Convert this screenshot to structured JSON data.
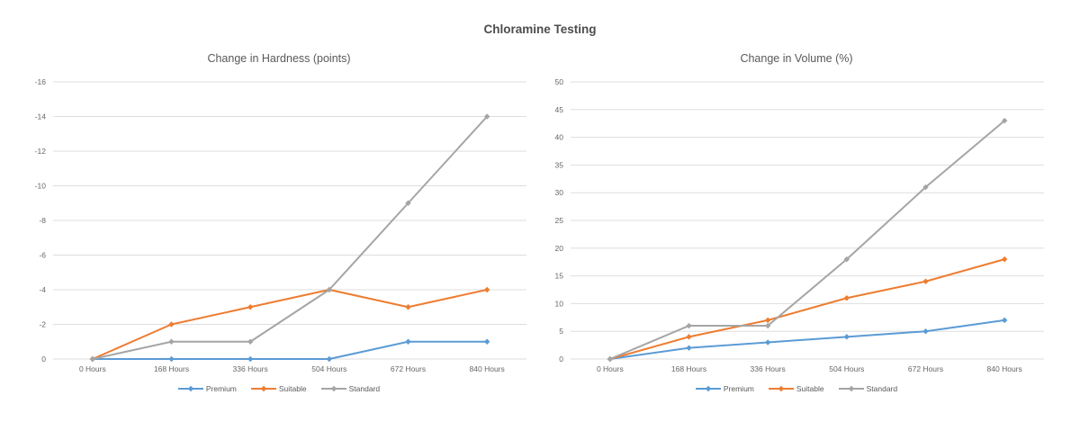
{
  "page_title": "Chloramine Testing",
  "colors": {
    "premium": "#5B9BD5",
    "suitable": "#ED7D31",
    "standard": "#A5A5A5",
    "gridline": "#DEDEDE",
    "axis_text": "#666666",
    "title_text": "#595959"
  },
  "chart_data": [
    {
      "type": "line",
      "title": "Change in Hardness (points)",
      "categories": [
        "0 Hours",
        "168 Hours",
        "336 Hours",
        "504 Hours",
        "672 Hours",
        "840 Hours"
      ],
      "series": [
        {
          "name": "Premium",
          "color": "#5B9BD5",
          "values": [
            0,
            0,
            0,
            0,
            -1,
            -1
          ]
        },
        {
          "name": "Suitable",
          "color": "#ED7D31",
          "values": [
            0,
            -2,
            -3,
            -4,
            -3,
            -4
          ]
        },
        {
          "name": "Standard",
          "color": "#A5A5A5",
          "values": [
            0,
            -1,
            -1,
            -4,
            -9,
            -14
          ]
        }
      ],
      "ylim": [
        0,
        -16
      ],
      "yticks": [
        0,
        -2,
        -4,
        -6,
        -8,
        -10,
        -12,
        -14,
        -16
      ],
      "grid": true,
      "legend_position": "bottom"
    },
    {
      "type": "line",
      "title": "Change in Volume (%)",
      "categories": [
        "0 Hours",
        "168 Hours",
        "336 Hours",
        "504 Hours",
        "672 Hours",
        "840 Hours"
      ],
      "series": [
        {
          "name": "Premium",
          "color": "#5B9BD5",
          "values": [
            0,
            2,
            3,
            4,
            5,
            7
          ]
        },
        {
          "name": "Suitable",
          "color": "#ED7D31",
          "values": [
            0,
            4,
            7,
            11,
            14,
            18
          ]
        },
        {
          "name": "Standard",
          "color": "#A5A5A5",
          "values": [
            0,
            6,
            6,
            18,
            31,
            43
          ]
        }
      ],
      "ylim": [
        0,
        50
      ],
      "yticks": [
        0,
        5,
        10,
        15,
        20,
        25,
        30,
        35,
        40,
        45,
        50
      ],
      "grid": true,
      "legend_position": "bottom"
    }
  ]
}
